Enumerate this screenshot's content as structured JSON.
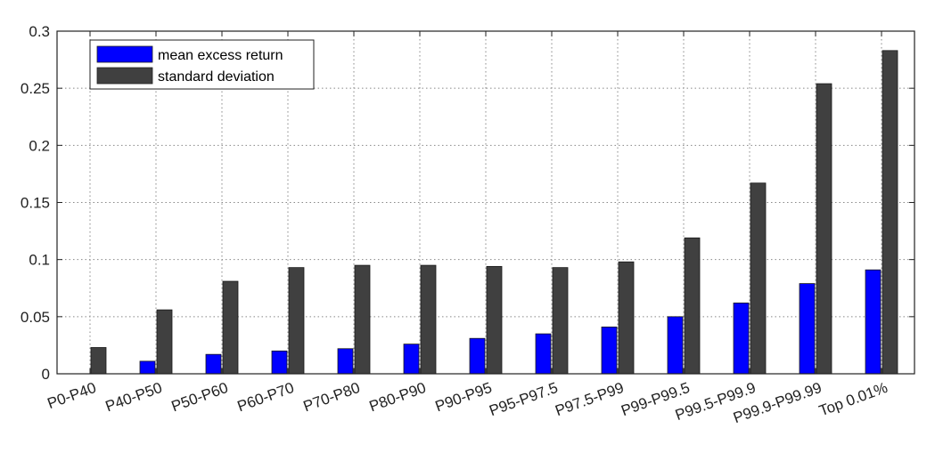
{
  "chart_data": {
    "type": "bar",
    "title": "",
    "xlabel": "",
    "ylabel": "",
    "categories": [
      "P0-P40",
      "P40-P50",
      "P50-P60",
      "P60-P70",
      "P70-P80",
      "P80-P90",
      "P90-P95",
      "P95-P97.5",
      "P97.5-P99",
      "P99-P99.5",
      "P99.5-P99.9",
      "P99.9-P99.99",
      "Top 0.01%"
    ],
    "series": [
      {
        "name": "mean excess return",
        "color": "#0000ff",
        "values": [
          0.0,
          0.011,
          0.017,
          0.02,
          0.022,
          0.026,
          0.031,
          0.035,
          0.041,
          0.05,
          0.062,
          0.079,
          0.091
        ]
      },
      {
        "name": "standard deviation",
        "color": "#404040",
        "values": [
          0.023,
          0.056,
          0.081,
          0.093,
          0.095,
          0.095,
          0.094,
          0.093,
          0.098,
          0.119,
          0.167,
          0.254,
          0.283
        ]
      }
    ],
    "ylim": [
      0,
      0.3
    ],
    "yticks": [
      "0",
      "0.05",
      "0.1",
      "0.15",
      "0.2",
      "0.25",
      "0.3"
    ],
    "ytick_values": [
      0,
      0.05,
      0.1,
      0.15,
      0.2,
      0.25,
      0.3
    ],
    "grid": true,
    "legend_position": "top-left"
  }
}
